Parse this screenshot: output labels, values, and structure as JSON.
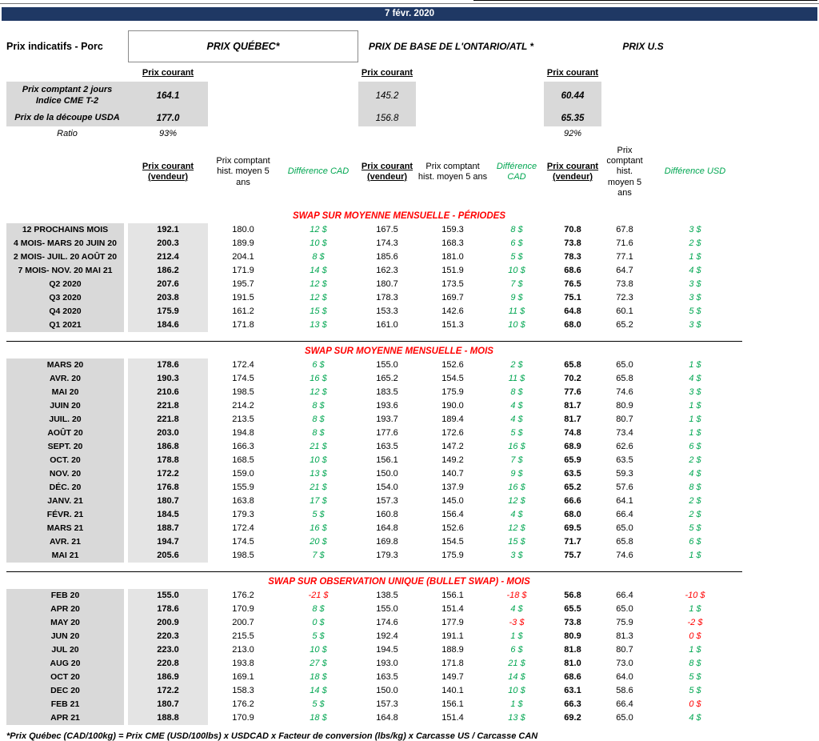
{
  "date": "7 févr. 2020",
  "page_title": "Prix indicatifs - Porc",
  "regions": {
    "quebec_title": "PRIX QUÉBEC*",
    "ontario_title": "PRIX DE BASE DE L'ONTARIO/ATL *",
    "us_title": "PRIX U.S",
    "prix_courant": "Prix courant"
  },
  "summary": {
    "rows": [
      {
        "label_line1": "Prix comptant 2 jours",
        "label_line2": "Indice CME T-2",
        "qc": "164.1",
        "on": "145.2",
        "us": "60.44"
      },
      {
        "label_line1": "Prix de la découpe USDA",
        "qc": "177.0",
        "on": "156.8",
        "us": "65.35"
      },
      {
        "label": "Ratio",
        "qc": "93%",
        "on": "",
        "us": "92%"
      }
    ]
  },
  "table_headers": {
    "prix_courant_vendeur": "Prix courant (vendeur)",
    "hist_5ans": "Prix comptant hist. moyen 5 ans",
    "diff_cad": "Différence CAD",
    "diff_usd": "Différence USD"
  },
  "colors": {
    "navy": "#1f3864",
    "green": "#00a651",
    "red": "#ff0000",
    "gray": "#d9d9d9"
  },
  "sections": [
    {
      "title": "SWAP SUR MOYENNE MENSUELLE - PÉRIODES",
      "rows": [
        {
          "label": "12 PROCHAINS MOIS",
          "v": [
            "192.1",
            "180.0",
            "12 $",
            "167.5",
            "159.3",
            "8 $",
            "70.8",
            "67.8",
            "3 $"
          ]
        },
        {
          "label": "4 MOIS- MARS 20 JUIN 20",
          "v": [
            "200.3",
            "189.9",
            "10 $",
            "174.3",
            "168.3",
            "6 $",
            "73.8",
            "71.6",
            "2 $"
          ]
        },
        {
          "label": "2 MOIS- JUIL. 20 AOÛT 20",
          "v": [
            "212.4",
            "204.1",
            "8 $",
            "185.6",
            "181.0",
            "5 $",
            "78.3",
            "77.1",
            "1 $"
          ]
        },
        {
          "label": "7 MOIS- NOV. 20 MAI 21",
          "v": [
            "186.2",
            "171.9",
            "14 $",
            "162.3",
            "151.9",
            "10 $",
            "68.6",
            "64.7",
            "4 $"
          ]
        },
        {
          "label": "Q2 2020",
          "v": [
            "207.6",
            "195.7",
            "12 $",
            "180.7",
            "173.5",
            "7 $",
            "76.5",
            "73.8",
            "3 $"
          ]
        },
        {
          "label": "Q3 2020",
          "v": [
            "203.8",
            "191.5",
            "12 $",
            "178.3",
            "169.7",
            "9 $",
            "75.1",
            "72.3",
            "3 $"
          ]
        },
        {
          "label": "Q4 2020",
          "v": [
            "175.9",
            "161.2",
            "15 $",
            "153.3",
            "142.6",
            "11 $",
            "64.8",
            "60.1",
            "5 $"
          ]
        },
        {
          "label": "Q1 2021",
          "v": [
            "184.6",
            "171.8",
            "13 $",
            "161.0",
            "151.3",
            "10 $",
            "68.0",
            "65.2",
            "3 $"
          ]
        }
      ]
    },
    {
      "title": "SWAP SUR MOYENNE MENSUELLE - MOIS",
      "rows": [
        {
          "label": "MARS 20",
          "v": [
            "178.6",
            "172.4",
            "6 $",
            "155.0",
            "152.6",
            "2 $",
            "65.8",
            "65.0",
            "1 $"
          ]
        },
        {
          "label": "AVR. 20",
          "v": [
            "190.3",
            "174.5",
            "16 $",
            "165.2",
            "154.5",
            "11 $",
            "70.2",
            "65.8",
            "4 $"
          ]
        },
        {
          "label": "MAI 20",
          "v": [
            "210.6",
            "198.5",
            "12 $",
            "183.5",
            "175.9",
            "8 $",
            "77.6",
            "74.6",
            "3 $"
          ]
        },
        {
          "label": "JUIN 20",
          "v": [
            "221.8",
            "214.2",
            "8 $",
            "193.6",
            "190.0",
            "4 $",
            "81.7",
            "80.9",
            "1 $"
          ]
        },
        {
          "label": "JUIL. 20",
          "v": [
            "221.8",
            "213.5",
            "8 $",
            "193.7",
            "189.4",
            "4 $",
            "81.7",
            "80.7",
            "1 $"
          ]
        },
        {
          "label": "AOÛT 20",
          "v": [
            "203.0",
            "194.8",
            "8 $",
            "177.6",
            "172.6",
            "5 $",
            "74.8",
            "73.4",
            "1 $"
          ]
        },
        {
          "label": "SEPT. 20",
          "v": [
            "186.8",
            "166.3",
            "21 $",
            "163.5",
            "147.2",
            "16 $",
            "68.9",
            "62.6",
            "6 $"
          ]
        },
        {
          "label": "OCT. 20",
          "v": [
            "178.8",
            "168.5",
            "10 $",
            "156.1",
            "149.2",
            "7 $",
            "65.9",
            "63.5",
            "2 $"
          ]
        },
        {
          "label": "NOV. 20",
          "v": [
            "172.2",
            "159.0",
            "13 $",
            "150.0",
            "140.7",
            "9 $",
            "63.5",
            "59.3",
            "4 $"
          ]
        },
        {
          "label": "DÉC. 20",
          "v": [
            "176.8",
            "155.9",
            "21 $",
            "154.0",
            "137.9",
            "16 $",
            "65.2",
            "57.6",
            "8 $"
          ]
        },
        {
          "label": "JANV. 21",
          "v": [
            "180.7",
            "163.8",
            "17 $",
            "157.3",
            "145.0",
            "12 $",
            "66.6",
            "64.1",
            "2 $"
          ]
        },
        {
          "label": "FÉVR. 21",
          "v": [
            "184.5",
            "179.3",
            "5 $",
            "160.8",
            "156.4",
            "4 $",
            "68.0",
            "66.4",
            "2 $"
          ]
        },
        {
          "label": "MARS 21",
          "v": [
            "188.7",
            "172.4",
            "16 $",
            "164.8",
            "152.6",
            "12 $",
            "69.5",
            "65.0",
            "5 $"
          ]
        },
        {
          "label": "AVR. 21",
          "v": [
            "194.7",
            "174.5",
            "20 $",
            "169.8",
            "154.5",
            "15 $",
            "71.7",
            "65.8",
            "6 $"
          ]
        },
        {
          "label": "MAI 21",
          "v": [
            "205.6",
            "198.5",
            "7 $",
            "179.3",
            "175.9",
            "3 $",
            "75.7",
            "74.6",
            "1 $"
          ]
        }
      ]
    },
    {
      "title": "SWAP SUR OBSERVATION UNIQUE (BULLET SWAP) - MOIS",
      "rows": [
        {
          "label": "FEB 20",
          "v": [
            "155.0",
            "176.2",
            "-21 $",
            "138.5",
            "156.1",
            "-18 $",
            "56.8",
            "66.4",
            "-10 $"
          ],
          "neg": [
            true,
            true,
            true
          ]
        },
        {
          "label": "APR 20",
          "v": [
            "178.6",
            "170.9",
            "8 $",
            "155.0",
            "151.4",
            "4 $",
            "65.5",
            "65.0",
            "1 $"
          ]
        },
        {
          "label": "MAY 20",
          "v": [
            "200.9",
            "200.7",
            "0 $",
            "174.6",
            "177.9",
            "-3 $",
            "73.8",
            "75.9",
            "-2 $"
          ],
          "neg": [
            false,
            true,
            true
          ]
        },
        {
          "label": "JUN 20",
          "v": [
            "220.3",
            "215.5",
            "5 $",
            "192.4",
            "191.1",
            "1 $",
            "80.9",
            "81.3",
            "0 $"
          ],
          "neg": [
            false,
            false,
            true
          ]
        },
        {
          "label": "JUL 20",
          "v": [
            "223.0",
            "213.0",
            "10 $",
            "194.5",
            "188.9",
            "6 $",
            "81.8",
            "80.7",
            "1 $"
          ]
        },
        {
          "label": "AUG 20",
          "v": [
            "220.8",
            "193.8",
            "27 $",
            "193.0",
            "171.8",
            "21 $",
            "81.0",
            "73.0",
            "8 $"
          ]
        },
        {
          "label": "OCT 20",
          "v": [
            "186.9",
            "169.1",
            "18 $",
            "163.5",
            "149.7",
            "14 $",
            "68.6",
            "64.0",
            "5 $"
          ]
        },
        {
          "label": "DEC 20",
          "v": [
            "172.2",
            "158.3",
            "14 $",
            "150.0",
            "140.1",
            "10 $",
            "63.1",
            "58.6",
            "5 $"
          ]
        },
        {
          "label": "FEB 21",
          "v": [
            "180.7",
            "176.2",
            "5 $",
            "157.3",
            "156.1",
            "1 $",
            "66.3",
            "66.4",
            "0 $"
          ],
          "neg": [
            false,
            false,
            true
          ]
        },
        {
          "label": "APR 21",
          "v": [
            "188.8",
            "170.9",
            "18 $",
            "164.8",
            "151.4",
            "13 $",
            "69.2",
            "65.0",
            "4 $"
          ]
        }
      ]
    }
  ],
  "footnote": "*Prix Québec (CAD/100kg) = Prix CME (USD/100lbs) x USDCAD x Facteur de conversion (lbs/kg) x Carcasse US / Carcasse CAN"
}
